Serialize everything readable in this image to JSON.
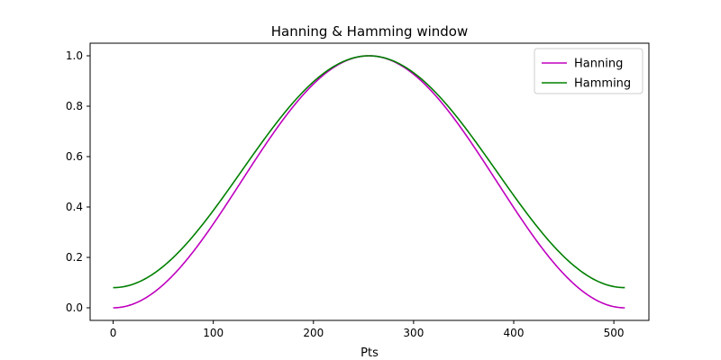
{
  "chart_data": {
    "type": "line",
    "title": "Hanning & Hamming window",
    "xlabel": "Pts",
    "ylabel": "",
    "xlim": [
      -23,
      535
    ],
    "ylim": [
      -0.05,
      1.05
    ],
    "xticks": [
      0,
      100,
      200,
      300,
      400,
      500
    ],
    "yticks": [
      0.0,
      0.2,
      0.4,
      0.6,
      0.8,
      1.0
    ],
    "xtick_labels": [
      "0",
      "100",
      "200",
      "300",
      "400",
      "500"
    ],
    "ytick_labels": [
      "0.0",
      "0.2",
      "0.4",
      "0.6",
      "0.8",
      "1.0"
    ],
    "grid": false,
    "legend_position": "top-right",
    "points": 512,
    "series": [
      {
        "name": "Hanning",
        "color": "#bf00bf",
        "alpha": 0.5,
        "beta": 0.5
      },
      {
        "name": "Hamming",
        "color": "#008000",
        "alpha": 0.54,
        "beta": 0.46
      }
    ]
  }
}
